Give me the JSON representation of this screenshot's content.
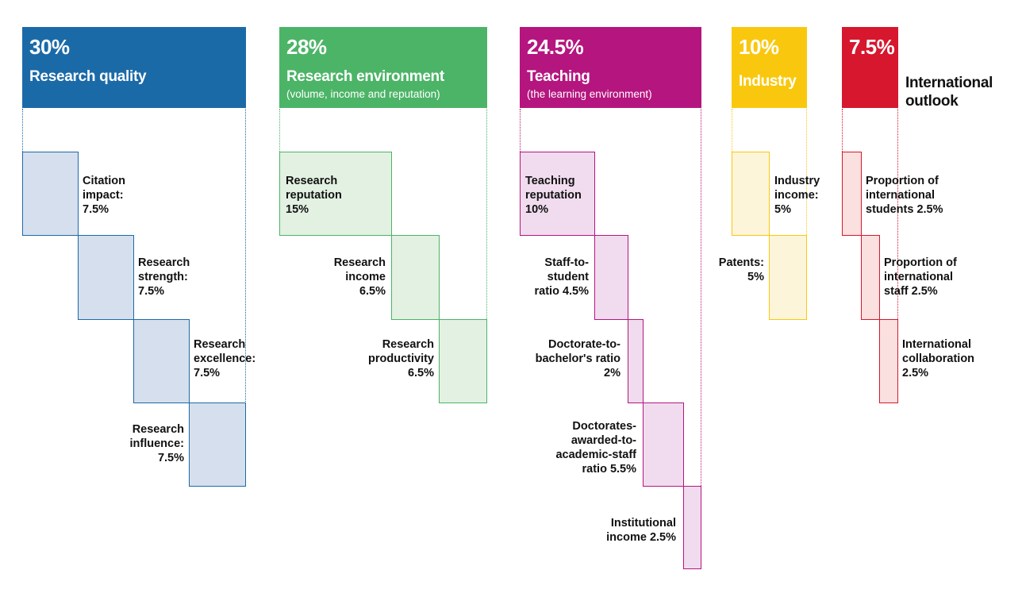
{
  "pillars": [
    {
      "id": "research-quality",
      "percent": "30%",
      "title": "Research quality",
      "subtitle": "",
      "color": "#1b6aa8",
      "fill": "#d6dfee",
      "metrics": [
        {
          "label": "Citation\nimpact:\n7.5%",
          "value": 7.5
        },
        {
          "label": "Research\nstrength:\n7.5%",
          "value": 7.5
        },
        {
          "label": "Research\nexcellence:\n7.5%",
          "value": 7.5
        },
        {
          "label": "Research\ninfluence:\n7.5%",
          "value": 7.5
        }
      ]
    },
    {
      "id": "research-environment",
      "percent": "28%",
      "title": "Research environment",
      "subtitle": "(volume, income and reputation)",
      "color": "#4cb467",
      "fill": "#e2f1e2",
      "metrics": [
        {
          "label": "Research\nreputation\n15%",
          "value": 15
        },
        {
          "label": "Research\nincome\n6.5%",
          "value": 6.5
        },
        {
          "label": "Research\nproductivity\n6.5%",
          "value": 6.5
        }
      ]
    },
    {
      "id": "teaching",
      "percent": "24.5%",
      "title": "Teaching",
      "subtitle": "(the learning environment)",
      "color": "#b5157f",
      "fill": "#f0dcee",
      "metrics": [
        {
          "label": "Teaching\nreputation\n10%",
          "value": 10
        },
        {
          "label": "Staff-to-\nstudent\nratio 4.5%",
          "value": 4.5
        },
        {
          "label": "Doctorate-to-\nbachelor's ratio\n2%",
          "value": 2
        },
        {
          "label": "Doctorates-\nawarded-to-\nacademic-staff\nratio 5.5%",
          "value": 5.5
        },
        {
          "label": "Institutional\nincome 2.5%",
          "value": 2.5
        }
      ]
    },
    {
      "id": "industry",
      "percent": "10%",
      "title": "Industry",
      "subtitle": "",
      "color": "#f9c80e",
      "fill": "#fdf5d9",
      "metrics": [
        {
          "label": "Industry\nincome:\n5%",
          "value": 5
        },
        {
          "label": "Patents:\n5%",
          "value": 5
        }
      ]
    },
    {
      "id": "international-outlook",
      "percent": "7.5%",
      "title": "International\noutlook",
      "subtitle": "",
      "color": "#d6172e",
      "fill": "#fae0df",
      "metrics": [
        {
          "label": "Proportion of\ninternational\nstudents 2.5%",
          "value": 2.5
        },
        {
          "label": "Proportion of\ninternational\nstaff 2.5%",
          "value": 2.5
        },
        {
          "label": "International\ncollaboration\n2.5%",
          "value": 2.5
        }
      ]
    }
  ]
}
